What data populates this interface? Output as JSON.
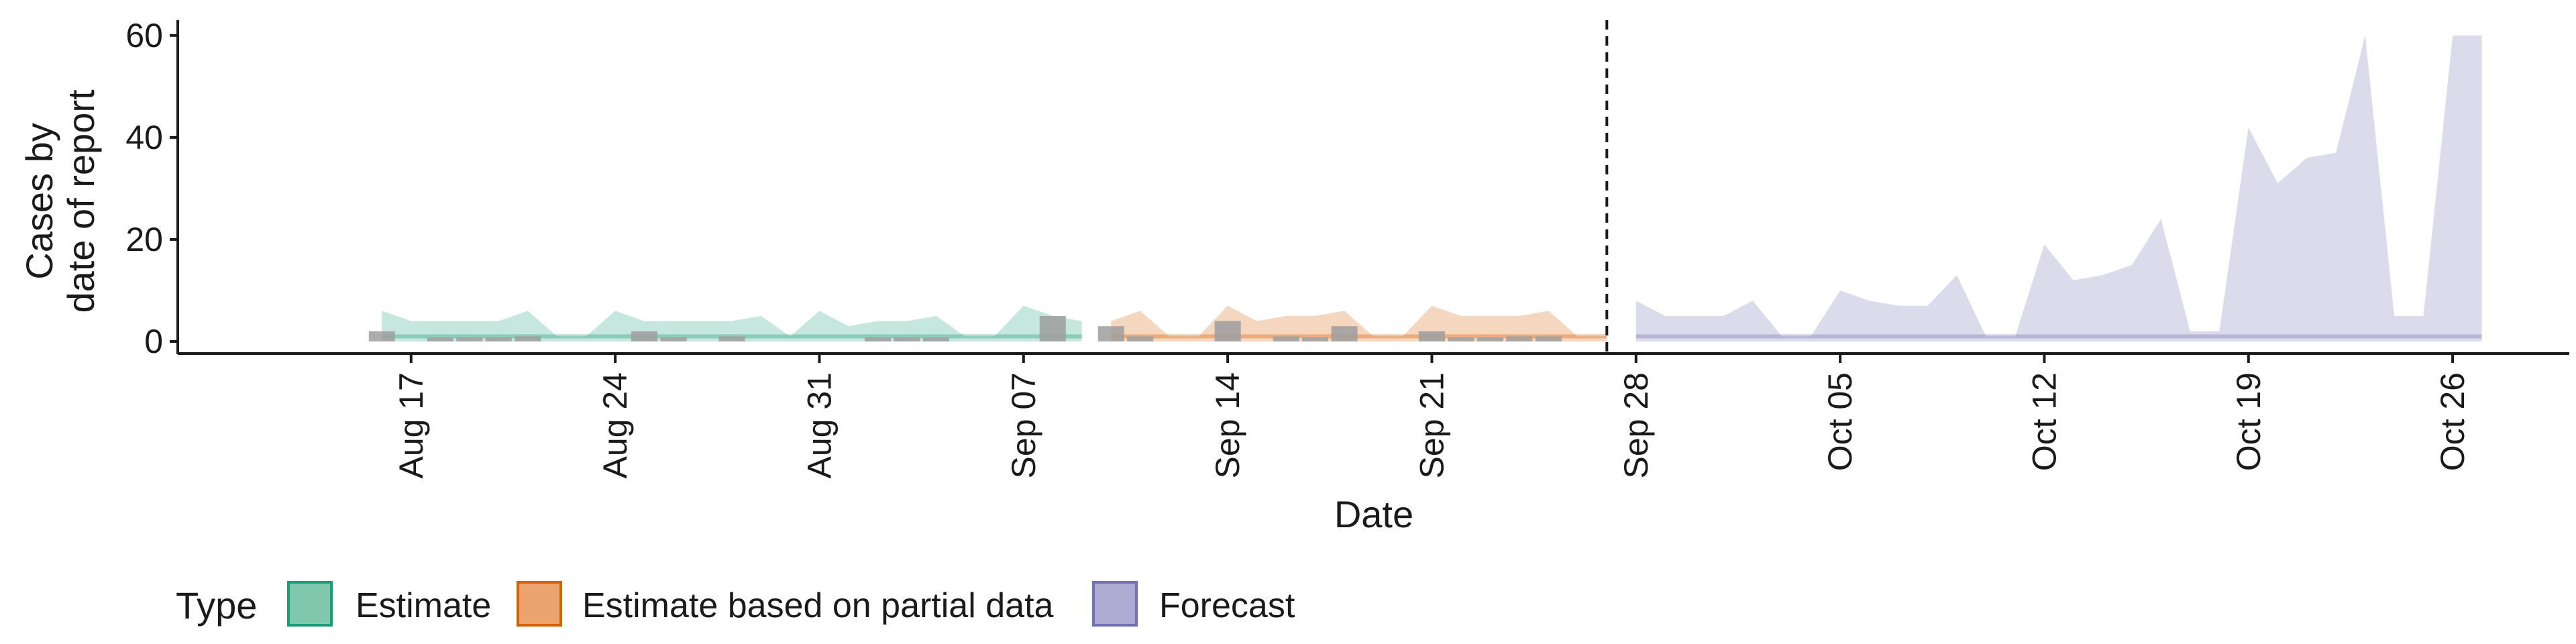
{
  "chart_data": {
    "type": "area",
    "xlabel": "Date",
    "ylabel_lines": [
      "Cases by",
      "date of report"
    ],
    "ylim": [
      0,
      63
    ],
    "yticks": [
      0,
      20,
      40,
      60
    ],
    "xlim": [
      "2020-08-09",
      "2020-10-30"
    ],
    "xticks": [
      {
        "date": "2020-08-17",
        "label": "Aug 17"
      },
      {
        "date": "2020-08-24",
        "label": "Aug 24"
      },
      {
        "date": "2020-08-31",
        "label": "Aug 31"
      },
      {
        "date": "2020-09-07",
        "label": "Sep 07"
      },
      {
        "date": "2020-09-14",
        "label": "Sep 14"
      },
      {
        "date": "2020-09-21",
        "label": "Sep 21"
      },
      {
        "date": "2020-09-28",
        "label": "Sep 28"
      },
      {
        "date": "2020-10-05",
        "label": "Oct 05"
      },
      {
        "date": "2020-10-12",
        "label": "Oct 12"
      },
      {
        "date": "2020-10-19",
        "label": "Oct 19"
      },
      {
        "date": "2020-10-26",
        "label": "Oct 26"
      }
    ],
    "forecast_start": "2020-09-27",
    "legend": {
      "title": "Type",
      "placement": "bottom",
      "items": [
        {
          "label": "Estimate",
          "fill": "#7fc7ad",
          "stroke": "#1b9e77"
        },
        {
          "label": "Estimate based on partial data",
          "fill": "#eda36d",
          "stroke": "#d95f02"
        },
        {
          "label": "Forecast",
          "fill": "#aeabd3",
          "stroke": "#7570b3"
        }
      ]
    },
    "series": [
      {
        "type": "Estimate",
        "color": "#1b9e77",
        "points": [
          {
            "x": "2020-08-16",
            "lower": 0,
            "upper": 6
          },
          {
            "x": "2020-08-17",
            "lower": 0,
            "upper": 4
          },
          {
            "x": "2020-08-18",
            "lower": 0,
            "upper": 4
          },
          {
            "x": "2020-08-19",
            "lower": 0,
            "upper": 4
          },
          {
            "x": "2020-08-20",
            "lower": 0,
            "upper": 4
          },
          {
            "x": "2020-08-21",
            "lower": 0,
            "upper": 6
          },
          {
            "x": "2020-08-22",
            "lower": 0,
            "upper": 1
          },
          {
            "x": "2020-08-23",
            "lower": 0,
            "upper": 1
          },
          {
            "x": "2020-08-24",
            "lower": 0,
            "upper": 6
          },
          {
            "x": "2020-08-25",
            "lower": 0,
            "upper": 4
          },
          {
            "x": "2020-08-26",
            "lower": 0,
            "upper": 4
          },
          {
            "x": "2020-08-27",
            "lower": 0,
            "upper": 4
          },
          {
            "x": "2020-08-28",
            "lower": 0,
            "upper": 4
          },
          {
            "x": "2020-08-29",
            "lower": 0,
            "upper": 5
          },
          {
            "x": "2020-08-30",
            "lower": 0,
            "upper": 1
          },
          {
            "x": "2020-08-31",
            "lower": 0,
            "upper": 6
          },
          {
            "x": "2020-09-01",
            "lower": 0,
            "upper": 3
          },
          {
            "x": "2020-09-02",
            "lower": 0,
            "upper": 4
          },
          {
            "x": "2020-09-03",
            "lower": 0,
            "upper": 4
          },
          {
            "x": "2020-09-04",
            "lower": 0,
            "upper": 5
          },
          {
            "x": "2020-09-05",
            "lower": 0,
            "upper": 1
          },
          {
            "x": "2020-09-06",
            "lower": 0,
            "upper": 1
          },
          {
            "x": "2020-09-07",
            "lower": 0,
            "upper": 7
          },
          {
            "x": "2020-09-08",
            "lower": 0,
            "upper": 5
          },
          {
            "x": "2020-09-09",
            "lower": 0,
            "upper": 4
          }
        ]
      },
      {
        "type": "Estimate based on partial data",
        "color": "#d95f02",
        "points": [
          {
            "x": "2020-09-10",
            "lower": 0,
            "upper": 4
          },
          {
            "x": "2020-09-11",
            "lower": 0,
            "upper": 6
          },
          {
            "x": "2020-09-12",
            "lower": 0,
            "upper": 1
          },
          {
            "x": "2020-09-13",
            "lower": 0,
            "upper": 1
          },
          {
            "x": "2020-09-14",
            "lower": 0,
            "upper": 7
          },
          {
            "x": "2020-09-15",
            "lower": 0,
            "upper": 4
          },
          {
            "x": "2020-09-16",
            "lower": 0,
            "upper": 5
          },
          {
            "x": "2020-09-17",
            "lower": 0,
            "upper": 5
          },
          {
            "x": "2020-09-18",
            "lower": 0,
            "upper": 6
          },
          {
            "x": "2020-09-19",
            "lower": 0,
            "upper": 1
          },
          {
            "x": "2020-09-20",
            "lower": 0,
            "upper": 1
          },
          {
            "x": "2020-09-21",
            "lower": 0,
            "upper": 7
          },
          {
            "x": "2020-09-22",
            "lower": 0,
            "upper": 5
          },
          {
            "x": "2020-09-23",
            "lower": 0,
            "upper": 5
          },
          {
            "x": "2020-09-24",
            "lower": 0,
            "upper": 5
          },
          {
            "x": "2020-09-25",
            "lower": 0,
            "upper": 6
          },
          {
            "x": "2020-09-26",
            "lower": 0,
            "upper": 1
          },
          {
            "x": "2020-09-27",
            "lower": 0,
            "upper": 1
          }
        ]
      },
      {
        "type": "Forecast",
        "color": "#7570b3",
        "points": [
          {
            "x": "2020-09-28",
            "lower": 0,
            "upper": 8
          },
          {
            "x": "2020-09-29",
            "lower": 0,
            "upper": 5
          },
          {
            "x": "2020-09-30",
            "lower": 0,
            "upper": 5
          },
          {
            "x": "2020-10-01",
            "lower": 0,
            "upper": 5
          },
          {
            "x": "2020-10-02",
            "lower": 0,
            "upper": 8
          },
          {
            "x": "2020-10-03",
            "lower": 0,
            "upper": 1
          },
          {
            "x": "2020-10-04",
            "lower": 0,
            "upper": 1
          },
          {
            "x": "2020-10-05",
            "lower": 0,
            "upper": 10
          },
          {
            "x": "2020-10-06",
            "lower": 0,
            "upper": 8
          },
          {
            "x": "2020-10-07",
            "lower": 0,
            "upper": 7
          },
          {
            "x": "2020-10-08",
            "lower": 0,
            "upper": 7
          },
          {
            "x": "2020-10-09",
            "lower": 0,
            "upper": 13
          },
          {
            "x": "2020-10-10",
            "lower": 0,
            "upper": 1
          },
          {
            "x": "2020-10-11",
            "lower": 0,
            "upper": 1
          },
          {
            "x": "2020-10-12",
            "lower": 0,
            "upper": 19
          },
          {
            "x": "2020-10-13",
            "lower": 0,
            "upper": 12
          },
          {
            "x": "2020-10-14",
            "lower": 0,
            "upper": 13
          },
          {
            "x": "2020-10-15",
            "lower": 0,
            "upper": 15
          },
          {
            "x": "2020-10-16",
            "lower": 0,
            "upper": 24
          },
          {
            "x": "2020-10-17",
            "lower": 0,
            "upper": 2
          },
          {
            "x": "2020-10-18",
            "lower": 0,
            "upper": 2
          },
          {
            "x": "2020-10-19",
            "lower": 0,
            "upper": 42
          },
          {
            "x": "2020-10-20",
            "lower": 0,
            "upper": 31
          },
          {
            "x": "2020-10-21",
            "lower": 0,
            "upper": 36
          },
          {
            "x": "2020-10-22",
            "lower": 0,
            "upper": 37
          },
          {
            "x": "2020-10-23",
            "lower": 0,
            "upper": 60
          },
          {
            "x": "2020-10-24",
            "lower": 0,
            "upper": 5
          },
          {
            "x": "2020-10-25",
            "lower": 0,
            "upper": 5
          },
          {
            "x": "2020-10-26",
            "lower": 0,
            "upper": 60
          },
          {
            "x": "2020-10-27",
            "lower": 0,
            "upper": 60
          }
        ]
      }
    ],
    "reported_cases": {
      "color": "#9e9e9e",
      "points": [
        {
          "x": "2020-08-16",
          "y": 2
        },
        {
          "x": "2020-08-18",
          "y": 0
        },
        {
          "x": "2020-08-19",
          "y": 0
        },
        {
          "x": "2020-08-20",
          "y": 0
        },
        {
          "x": "2020-08-21",
          "y": 1
        },
        {
          "x": "2020-08-25",
          "y": 2
        },
        {
          "x": "2020-08-26",
          "y": 0
        },
        {
          "x": "2020-08-28",
          "y": 1
        },
        {
          "x": "2020-09-02",
          "y": 0
        },
        {
          "x": "2020-09-03",
          "y": 0
        },
        {
          "x": "2020-09-04",
          "y": 0
        },
        {
          "x": "2020-09-08",
          "y": 5
        },
        {
          "x": "2020-09-10",
          "y": 3
        },
        {
          "x": "2020-09-11",
          "y": 1
        },
        {
          "x": "2020-09-14",
          "y": 4
        },
        {
          "x": "2020-09-16",
          "y": 1
        },
        {
          "x": "2020-09-17",
          "y": 0
        },
        {
          "x": "2020-09-18",
          "y": 3
        },
        {
          "x": "2020-09-21",
          "y": 2
        },
        {
          "x": "2020-09-22",
          "y": 0
        },
        {
          "x": "2020-09-23",
          "y": 0
        },
        {
          "x": "2020-09-24",
          "y": 1
        },
        {
          "x": "2020-09-25",
          "y": 1
        }
      ]
    }
  }
}
